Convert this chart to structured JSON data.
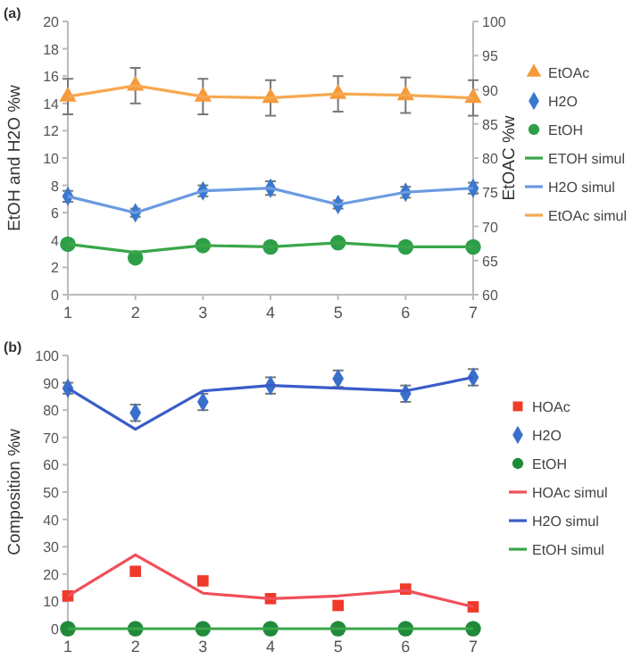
{
  "chart_data": [
    {
      "type": "scatter",
      "categories": [
        "1",
        "2",
        "3",
        "4",
        "5",
        "6",
        "7"
      ],
      "ylabel": "EtOH and H2O %w",
      "y2label": "EtOAC %w",
      "ylim": [
        0,
        20
      ],
      "yticks": [
        0,
        2,
        4,
        6,
        8,
        10,
        12,
        14,
        16,
        18,
        20
      ],
      "y2lim": [
        60,
        100
      ],
      "y2ticks": [
        60,
        65,
        70,
        75,
        80,
        85,
        90,
        95,
        100
      ],
      "legend": "right",
      "annotations": [
        "(a)"
      ],
      "series": [
        {
          "name": "EtOAc",
          "axis": "y2",
          "marker": "triangle",
          "color": "#f59a3c",
          "values": [
            89,
            90.6,
            89,
            88.8,
            89.4,
            89.2,
            88.8
          ],
          "errors": [
            2.6,
            2.6,
            2.6,
            2.6,
            2.6,
            2.6,
            2.6
          ]
        },
        {
          "name": "H2O",
          "marker": "diamond",
          "color": "#3a78d0",
          "values": [
            7.2,
            6.0,
            7.6,
            7.8,
            6.6,
            7.5,
            7.8
          ],
          "errors": [
            0.4,
            0.3,
            0.4,
            0.5,
            0.3,
            0.4,
            0.4
          ]
        },
        {
          "name": "EtOH",
          "marker": "circle",
          "color": "#2e9e48",
          "values": [
            3.7,
            2.7,
            3.6,
            3.5,
            3.8,
            3.5,
            3.5
          ]
        },
        {
          "name": "ETOH simul",
          "type": "line",
          "color": "#3aa64a",
          "values": [
            3.7,
            3.1,
            3.6,
            3.5,
            3.8,
            3.5,
            3.5
          ]
        },
        {
          "name": "H2O simul",
          "type": "line",
          "color": "#6a9be0",
          "values": [
            7.2,
            6.0,
            7.6,
            7.8,
            6.6,
            7.5,
            7.8
          ]
        },
        {
          "name": "EtOAc simul",
          "type": "line",
          "axis": "y2",
          "color": "#f7a850",
          "values": [
            89,
            90.6,
            89,
            88.8,
            89.4,
            89.2,
            88.8
          ]
        }
      ]
    },
    {
      "type": "scatter",
      "categories": [
        "1",
        "2",
        "3",
        "4",
        "5",
        "6",
        "7"
      ],
      "ylabel": "Composition %w",
      "ylim": [
        0,
        100
      ],
      "yticks": [
        0,
        10,
        20,
        30,
        40,
        50,
        60,
        70,
        80,
        90,
        100
      ],
      "legend": "right",
      "annotations": [
        "(b)"
      ],
      "series": [
        {
          "name": "HOAc",
          "marker": "square",
          "color": "#f03a2a",
          "values": [
            12,
            21,
            17.5,
            11,
            8.5,
            14.5,
            8
          ]
        },
        {
          "name": "H2O",
          "marker": "diamond",
          "color": "#3a70cc",
          "values": [
            88,
            79,
            83,
            89,
            91.5,
            86,
            92
          ],
          "errors": [
            2,
            3,
            3,
            3,
            3,
            3,
            3
          ]
        },
        {
          "name": "EtOH",
          "marker": "circle",
          "color": "#1f8a3a",
          "values": [
            0,
            0,
            0,
            0,
            0,
            0,
            0
          ]
        },
        {
          "name": "HOAc simul",
          "type": "line",
          "color": "#f0505a",
          "values": [
            12,
            27,
            13,
            11,
            12,
            14,
            8
          ]
        },
        {
          "name": "H2O simul",
          "type": "line",
          "color": "#3a5cc8",
          "values": [
            88,
            73,
            87,
            89,
            88,
            87,
            92
          ]
        },
        {
          "name": "EtOH simul",
          "type": "line",
          "color": "#3aa64a",
          "values": [
            0,
            0,
            0,
            0,
            0,
            0,
            0
          ]
        }
      ]
    }
  ]
}
